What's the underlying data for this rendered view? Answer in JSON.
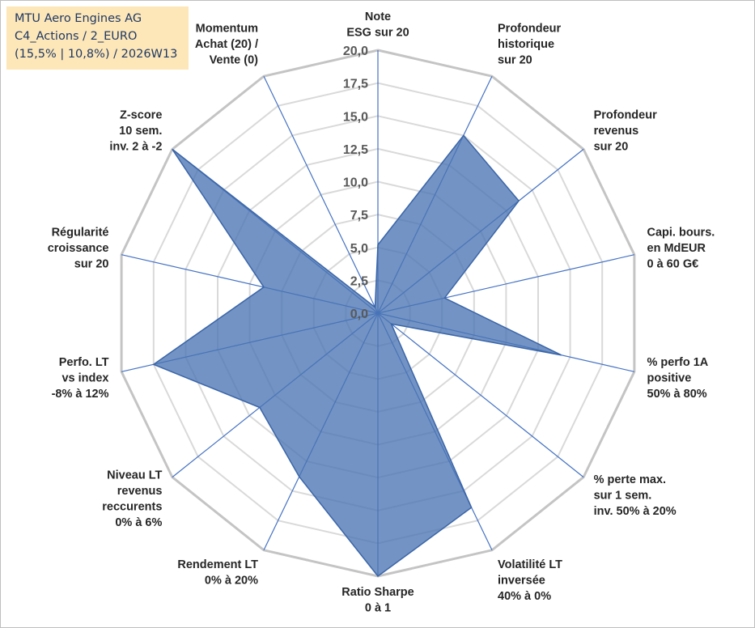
{
  "info": {
    "line1": "MTU Aero Engines AG",
    "line2": "C4_Actions / 2_EURO",
    "line3": "(15,5% | 10,8%) / 2026W13"
  },
  "chart_data": {
    "type": "radar",
    "title": "",
    "rmax": 20,
    "rticks": [
      "0,0",
      "2,5",
      "5,0",
      "7,5",
      "10,0",
      "12,5",
      "15,0",
      "17,5",
      "20,0"
    ],
    "axes": [
      [
        "Note",
        "ESG sur 20"
      ],
      [
        "Profondeur",
        "historique",
        "sur 20"
      ],
      [
        "Profondeur",
        "revenus",
        "sur 20"
      ],
      [
        "Capi. bours.",
        "en MdEUR",
        "0 à 60 G€"
      ],
      [
        "% perfo 1A",
        "positive",
        "50% à 80%"
      ],
      [
        "% perte max.",
        "sur 1 sem.",
        "inv. 50% à 20%"
      ],
      [
        "Volatilité LT",
        "inversée",
        "40% à 0%"
      ],
      [
        "Ratio Sharpe",
        "0 à 1"
      ],
      [
        "Rendement LT",
        "0% à 20%"
      ],
      [
        "Niveau LT",
        "revenus",
        "reccurents",
        "0% à 6%"
      ],
      [
        "Perfo. LT",
        "vs index",
        "-8% à 12%"
      ],
      [
        "Régularité",
        "croissance",
        "sur 20"
      ],
      [
        "Z-score",
        "10 sem.",
        "inv. 2 à -2"
      ],
      [
        "Momentum",
        "Achat (20) /",
        "Vente (0)"
      ]
    ],
    "series": [
      {
        "name": "MTU Aero Engines AG",
        "color": "#4a74b4",
        "values": [
          5.2,
          15.0,
          13.7,
          5.2,
          14.3,
          1.3,
          16.4,
          20.0,
          13.8,
          11.5,
          17.5,
          8.9,
          20.0,
          0.5
        ]
      }
    ]
  }
}
